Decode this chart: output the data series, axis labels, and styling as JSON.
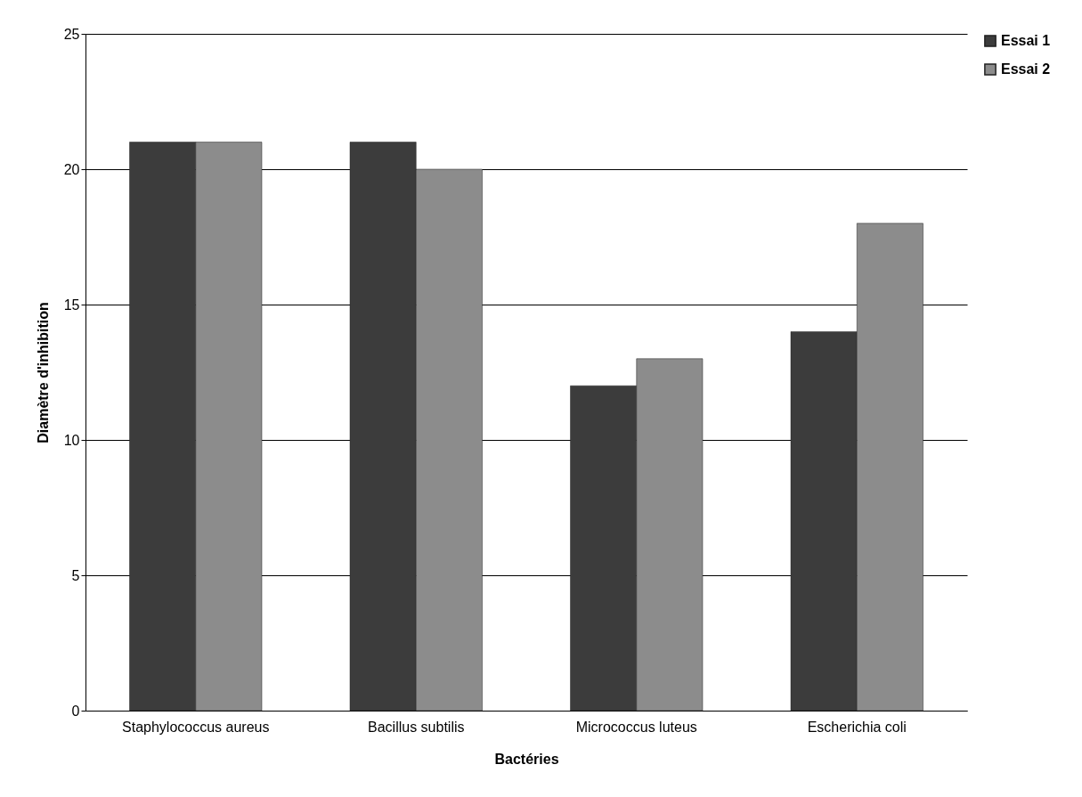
{
  "chart_data": {
    "type": "bar",
    "xlabel": "Bactéries",
    "ylabel": "Diamètre d'inhibition",
    "categories": [
      "Staphylococcus aureus",
      "Bacillus subtilis",
      "Micrococcus luteus",
      "Escherichia coli"
    ],
    "series": [
      {
        "name": "Essai 1",
        "color": "#3c3c3c",
        "values": [
          21,
          21,
          12,
          14
        ]
      },
      {
        "name": "Essai 2",
        "color": "#8c8c8c",
        "values": [
          21,
          20,
          13,
          18
        ]
      }
    ],
    "ylim": [
      0,
      25
    ],
    "yticks": [
      0,
      5,
      10,
      15,
      20,
      25
    ],
    "grid": "y",
    "legend": "right"
  }
}
